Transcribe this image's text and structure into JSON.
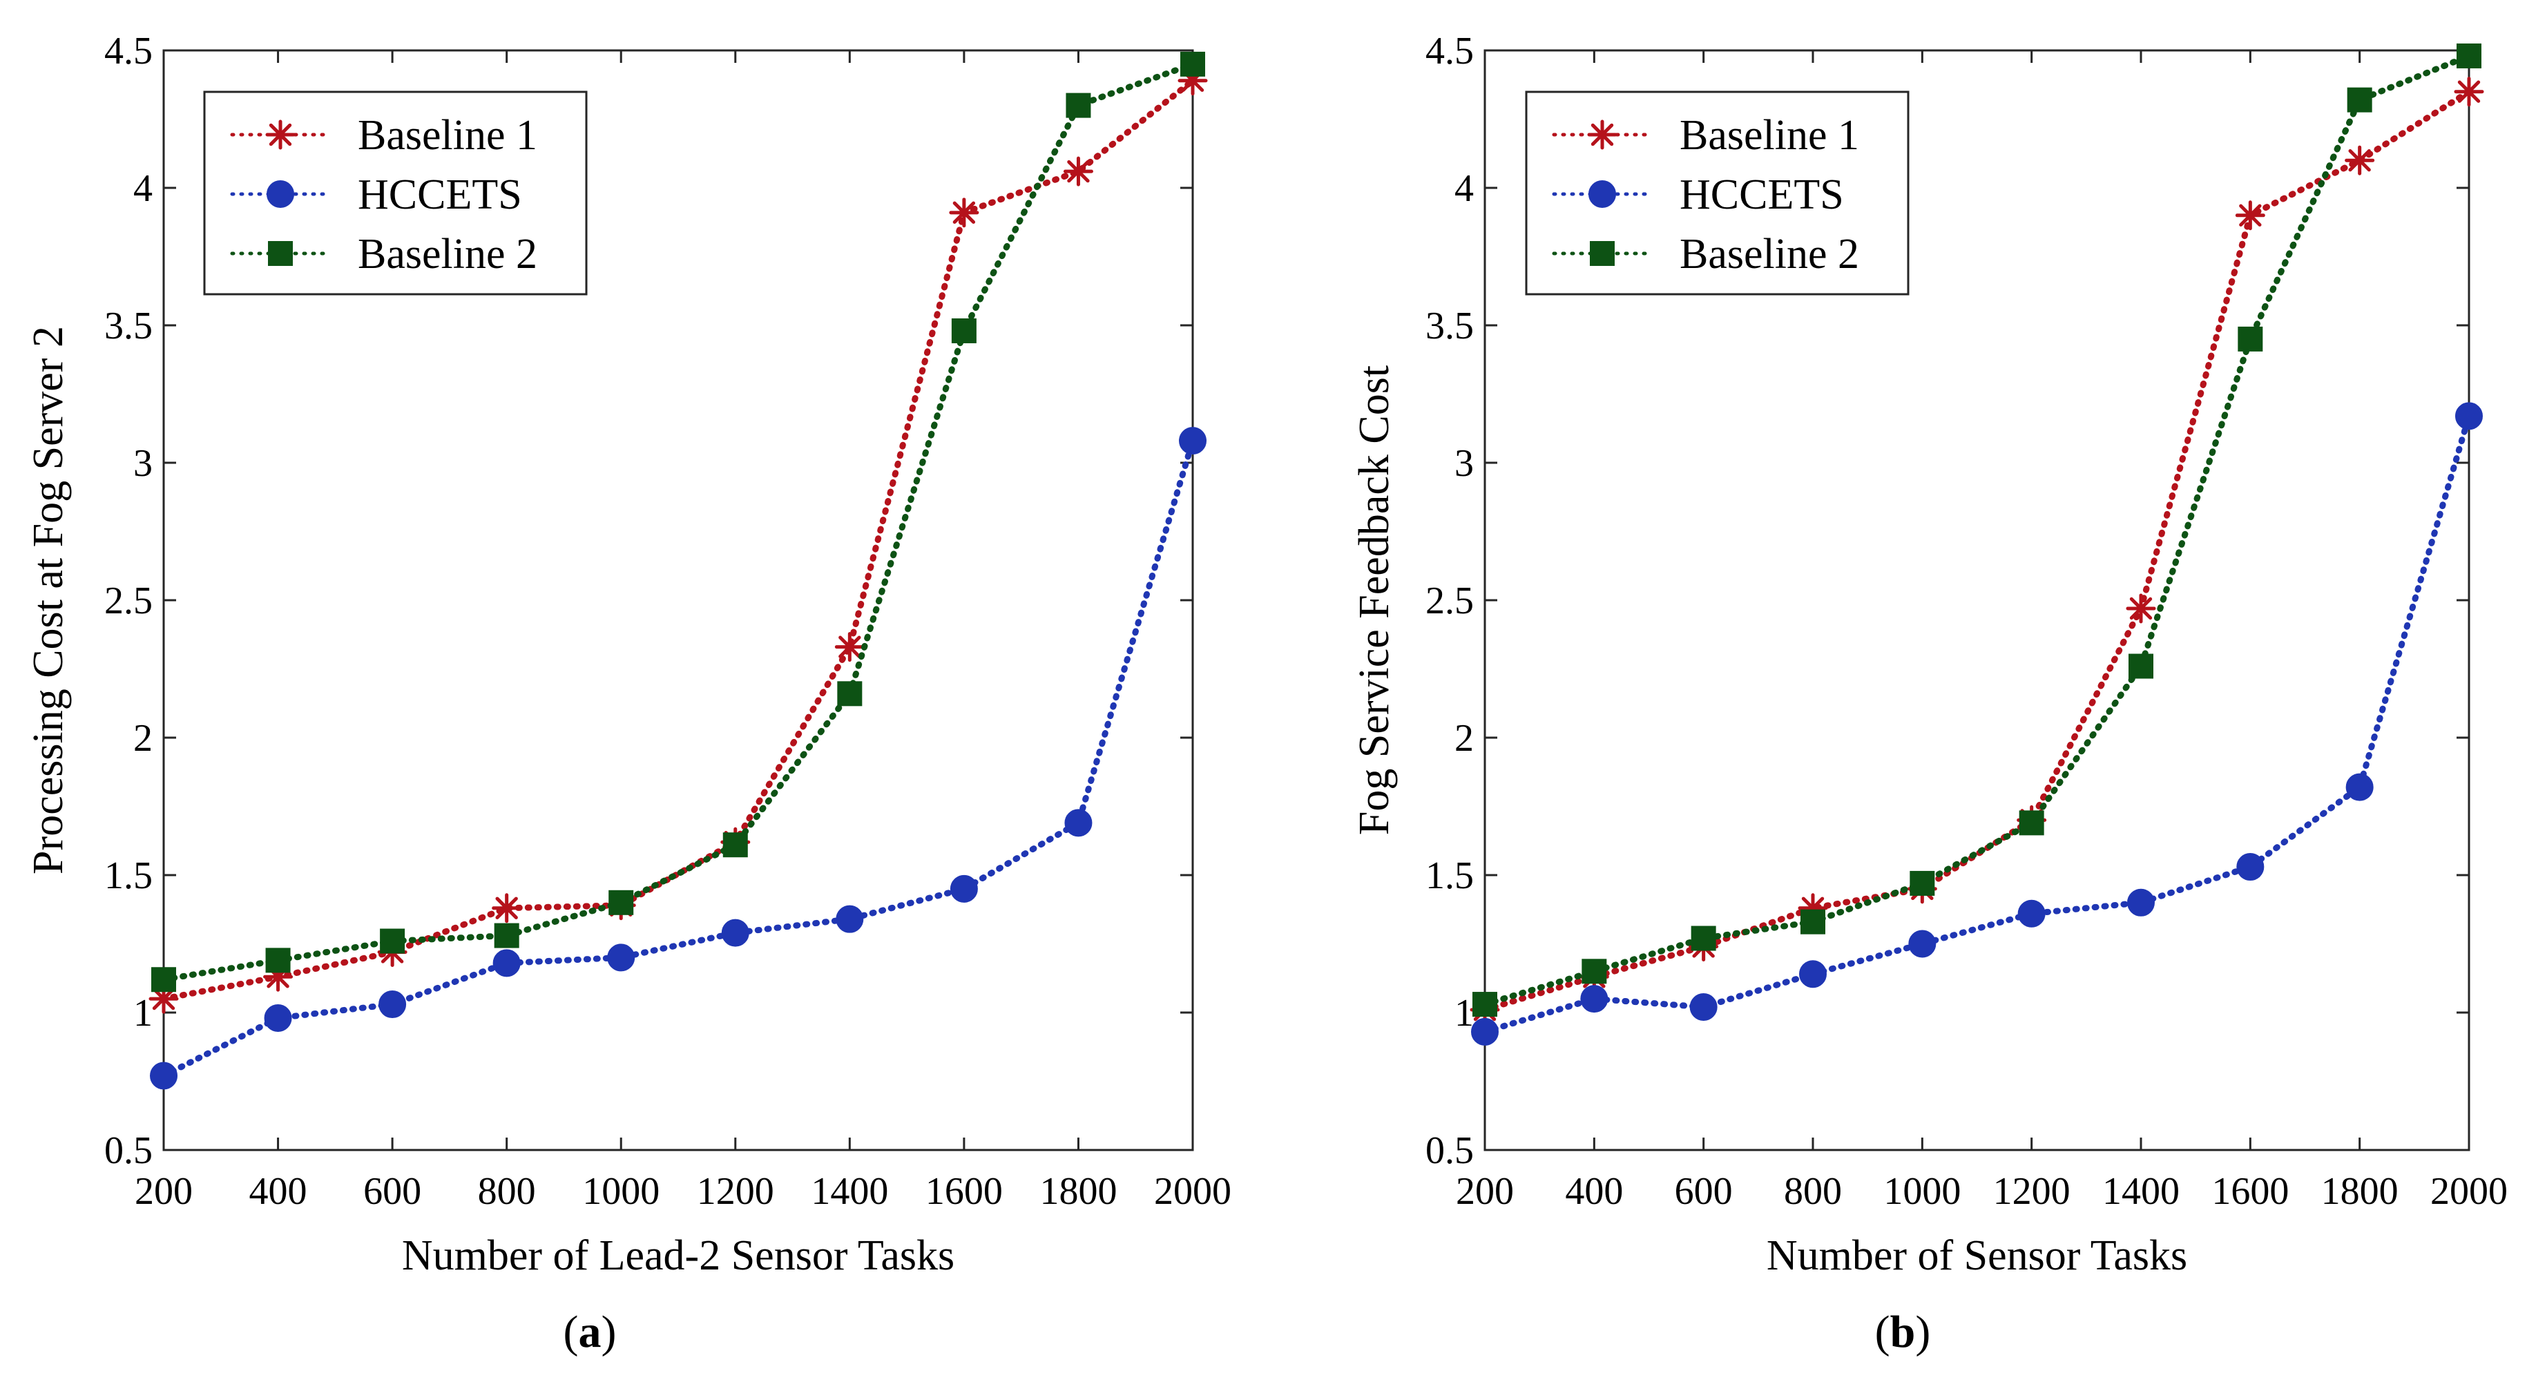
{
  "chart_data": [
    {
      "type": "line",
      "panel_label": "a",
      "title": "",
      "xlabel": "Number of Lead-2 Sensor Tasks",
      "ylabel": "Processing Cost at Fog Server 2",
      "x": [
        200,
        400,
        600,
        800,
        1000,
        1200,
        1400,
        1600,
        1800,
        2000
      ],
      "x_ticks": [
        "200",
        "400",
        "600",
        "800",
        "1000",
        "1200",
        "1400",
        "1600",
        "1800",
        "2000"
      ],
      "y_ticks": [
        "0.5",
        "1",
        "1.5",
        "2",
        "2.5",
        "3",
        "3.5",
        "4",
        "4.5"
      ],
      "xlim": [
        200,
        2000
      ],
      "ylim": [
        0.5,
        4.5
      ],
      "grid": false,
      "legend_position": "top-left",
      "series": [
        {
          "name": "Baseline 1",
          "color": "#b5121b",
          "marker": "asterisk",
          "values": [
            1.05,
            1.13,
            1.22,
            1.38,
            1.39,
            1.62,
            2.33,
            3.91,
            4.06,
            4.39
          ]
        },
        {
          "name": "HCCETS",
          "color": "#1f36b3",
          "marker": "circle",
          "values": [
            0.77,
            0.98,
            1.03,
            1.18,
            1.2,
            1.29,
            1.34,
            1.45,
            1.69,
            3.08
          ]
        },
        {
          "name": "Baseline 2",
          "color": "#0d5214",
          "marker": "square",
          "values": [
            1.12,
            1.19,
            1.26,
            1.28,
            1.4,
            1.61,
            2.16,
            3.48,
            4.3,
            4.45
          ]
        }
      ]
    },
    {
      "type": "line",
      "panel_label": "b",
      "title": "",
      "xlabel": "Number of Sensor Tasks",
      "ylabel": "Fog Service Feedback Cost",
      "x": [
        200,
        400,
        600,
        800,
        1000,
        1200,
        1400,
        1600,
        1800,
        2000
      ],
      "x_ticks": [
        "200",
        "400",
        "600",
        "800",
        "1000",
        "1200",
        "1400",
        "1600",
        "1800",
        "2000"
      ],
      "y_ticks": [
        "0.5",
        "1",
        "1.5",
        "2",
        "2.5",
        "3",
        "3.5",
        "4",
        "4.5"
      ],
      "xlim": [
        200,
        2000
      ],
      "ylim": [
        0.5,
        4.5
      ],
      "grid": false,
      "legend_position": "top-left",
      "series": [
        {
          "name": "Baseline 1",
          "color": "#b5121b",
          "marker": "asterisk",
          "values": [
            1.01,
            1.13,
            1.24,
            1.38,
            1.45,
            1.7,
            2.47,
            3.9,
            4.1,
            4.35
          ]
        },
        {
          "name": "HCCETS",
          "color": "#1f36b3",
          "marker": "circle",
          "values": [
            0.93,
            1.05,
            1.02,
            1.14,
            1.25,
            1.36,
            1.4,
            1.53,
            1.82,
            3.17
          ]
        },
        {
          "name": "Baseline 2",
          "color": "#0d5214",
          "marker": "square",
          "values": [
            1.03,
            1.15,
            1.27,
            1.33,
            1.47,
            1.69,
            2.26,
            3.45,
            4.32,
            4.48
          ]
        }
      ]
    }
  ]
}
